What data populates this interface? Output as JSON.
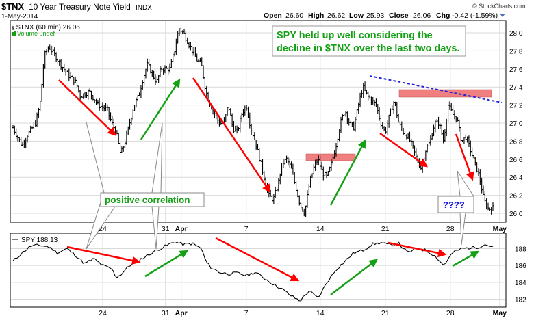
{
  "header": {
    "symbol": "$TNX",
    "name": "10 Year Treasury Note Yield",
    "exchange": "INDX",
    "date": "1-May-2014",
    "open_label": "Open",
    "open": "26.60",
    "high_label": "High",
    "high": "26.62",
    "low_label": "Low",
    "low": "25.93",
    "close_label": "Close",
    "close": "26.06",
    "chg_label": "Chg",
    "chg": "-0.42 (-1.59%)"
  },
  "copyright": "© StockCharts.com",
  "colors": {
    "bars": "#000000",
    "down_arrow": "#ff0000",
    "up_arrow": "#14a014",
    "callout_text": "#14a014",
    "question_text": "#1414e6",
    "resistance_line": "#2222dd",
    "zone_fill": "#f08080",
    "grid": "#d9d9d9"
  },
  "annotations": {
    "callout": "SPY held up well considering the decline in $TNX over the last two days.",
    "callout_line1": "SPY held up well considering the",
    "callout_line2": "decline in $TNX over the last two days.",
    "correlation": "positive correlation",
    "question": "????"
  },
  "chart_data": [
    {
      "type": "ohlc",
      "legend": "$TNX (60 min) 26.06",
      "volume_label": "Volume undef",
      "ylim": [
        25.9,
        28.1
      ],
      "yticks": [
        26.0,
        26.2,
        26.4,
        26.6,
        26.8,
        27.0,
        27.2,
        27.4,
        27.6,
        27.8,
        28.0
      ],
      "ytick_labels": [
        "26.0",
        "26.2",
        "26.4",
        "26.6",
        "26.8",
        "27.0",
        "27.2",
        "27.4",
        "27.6",
        "27.8",
        "28.0"
      ],
      "x_ticks": [
        "24",
        "31",
        "Apr",
        "7",
        "14",
        "21",
        "28",
        "May"
      ],
      "path": [
        [
          0,
          26.95
        ],
        [
          2,
          26.75
        ],
        [
          3,
          26.85
        ],
        [
          5,
          27.0
        ],
        [
          6,
          27.2
        ],
        [
          7,
          27.75
        ],
        [
          8,
          27.85
        ],
        [
          10,
          27.7
        ],
        [
          12,
          27.55
        ],
        [
          14,
          27.45
        ],
        [
          15,
          27.3
        ],
        [
          17,
          27.35
        ],
        [
          19,
          27.2
        ],
        [
          21,
          27.15
        ],
        [
          22,
          27.0
        ],
        [
          23,
          26.9
        ],
        [
          24,
          26.65
        ],
        [
          25,
          26.8
        ],
        [
          26,
          27.0
        ],
        [
          27,
          27.2
        ],
        [
          28,
          27.3
        ],
        [
          29,
          27.5
        ],
        [
          30,
          27.65
        ],
        [
          31,
          27.55
        ],
        [
          32,
          27.45
        ],
        [
          33,
          27.6
        ],
        [
          35,
          27.6
        ],
        [
          36,
          27.8
        ],
        [
          37,
          28.05
        ],
        [
          38,
          28.0
        ],
        [
          39,
          27.9
        ],
        [
          40,
          27.8
        ],
        [
          41,
          27.7
        ],
        [
          42,
          27.65
        ],
        [
          43,
          27.35
        ],
        [
          44,
          27.2
        ],
        [
          45,
          27.1
        ],
        [
          46,
          27.0
        ],
        [
          47,
          27.0
        ],
        [
          48,
          27.2
        ],
        [
          49,
          26.95
        ],
        [
          50,
          26.9
        ],
        [
          51,
          27.1
        ],
        [
          52,
          27.2
        ],
        [
          53,
          26.95
        ],
        [
          54,
          26.8
        ],
        [
          55,
          26.6
        ],
        [
          56,
          26.4
        ],
        [
          57,
          26.2
        ],
        [
          58,
          26.15
        ],
        [
          59,
          26.3
        ],
        [
          60,
          26.55
        ],
        [
          61,
          26.6
        ],
        [
          62,
          26.5
        ],
        [
          63,
          26.3
        ],
        [
          64,
          26.1
        ],
        [
          65,
          26.0
        ],
        [
          66,
          26.3
        ],
        [
          67,
          26.5
        ],
        [
          68,
          26.6
        ],
        [
          69,
          26.45
        ],
        [
          70,
          26.4
        ],
        [
          71,
          26.55
        ],
        [
          72,
          26.75
        ],
        [
          73,
          27.0
        ],
        [
          74,
          27.15
        ],
        [
          75,
          27.0
        ],
        [
          76,
          26.95
        ],
        [
          77,
          27.2
        ],
        [
          78,
          27.4
        ],
        [
          79,
          27.3
        ],
        [
          80,
          27.25
        ],
        [
          81,
          27.2
        ],
        [
          82,
          27.0
        ],
        [
          83,
          26.9
        ],
        [
          84,
          27.1
        ],
        [
          85,
          27.25
        ],
        [
          86,
          27.0
        ],
        [
          87,
          26.9
        ],
        [
          88,
          26.85
        ],
        [
          89,
          26.75
        ],
        [
          90,
          26.6
        ],
        [
          91,
          26.5
        ],
        [
          92,
          26.7
        ],
        [
          93,
          26.8
        ],
        [
          94,
          27.0
        ],
        [
          95,
          27.0
        ],
        [
          96,
          26.8
        ],
        [
          97,
          27.2
        ],
        [
          98,
          27.1
        ],
        [
          99,
          27.05
        ],
        [
          100,
          26.8
        ],
        [
          101,
          26.85
        ],
        [
          102,
          26.7
        ],
        [
          103,
          26.55
        ],
        [
          104,
          26.4
        ],
        [
          105,
          26.15
        ],
        [
          106,
          26.05
        ],
        [
          107,
          26.06
        ]
      ]
    },
    {
      "type": "line",
      "legend": "SPY 188.13",
      "ylim": [
        181.2,
        189.4
      ],
      "yticks": [
        182,
        184,
        186,
        188
      ],
      "ytick_labels": [
        "182",
        "184",
        "186",
        "188"
      ],
      "x_ticks": [
        "24",
        "31",
        "Apr",
        "7",
        "14",
        "21",
        "28",
        "May"
      ],
      "path": [
        [
          0,
          186.5
        ],
        [
          2,
          187.5
        ],
        [
          4,
          188.3
        ],
        [
          6,
          188.4
        ],
        [
          8,
          188.2
        ],
        [
          10,
          187.5
        ],
        [
          12,
          188.0
        ],
        [
          14,
          187.2
        ],
        [
          16,
          186.2
        ],
        [
          18,
          186.8
        ],
        [
          20,
          186.0
        ],
        [
          22,
          185.6
        ],
        [
          23,
          184.6
        ],
        [
          24,
          184.9
        ],
        [
          26,
          186.0
        ],
        [
          28,
          186.6
        ],
        [
          30,
          187.2
        ],
        [
          32,
          187.8
        ],
        [
          34,
          188.3
        ],
        [
          36,
          188.8
        ],
        [
          38,
          188.5
        ],
        [
          40,
          188.6
        ],
        [
          42,
          188.0
        ],
        [
          43,
          186.5
        ],
        [
          44,
          185.8
        ],
        [
          46,
          185.2
        ],
        [
          48,
          185.0
        ],
        [
          50,
          185.1
        ],
        [
          52,
          184.8
        ],
        [
          54,
          185.2
        ],
        [
          56,
          184.5
        ],
        [
          58,
          183.8
        ],
        [
          60,
          183.2
        ],
        [
          62,
          182.4
        ],
        [
          64,
          181.8
        ],
        [
          66,
          183.0
        ],
        [
          68,
          182.1
        ],
        [
          70,
          184.0
        ],
        [
          72,
          185.5
        ],
        [
          74,
          186.5
        ],
        [
          76,
          187.5
        ],
        [
          78,
          187.8
        ],
        [
          80,
          188.5
        ],
        [
          82,
          188.7
        ],
        [
          84,
          188.4
        ],
        [
          86,
          188.6
        ],
        [
          88,
          187.5
        ],
        [
          90,
          188.0
        ],
        [
          92,
          187.8
        ],
        [
          94,
          187.2
        ],
        [
          96,
          186.0
        ],
        [
          98,
          187.5
        ],
        [
          100,
          188.0
        ],
        [
          102,
          188.1
        ],
        [
          104,
          188.2
        ],
        [
          105,
          188.5
        ],
        [
          106,
          188.4
        ],
        [
          107,
          188.13
        ]
      ]
    }
  ]
}
